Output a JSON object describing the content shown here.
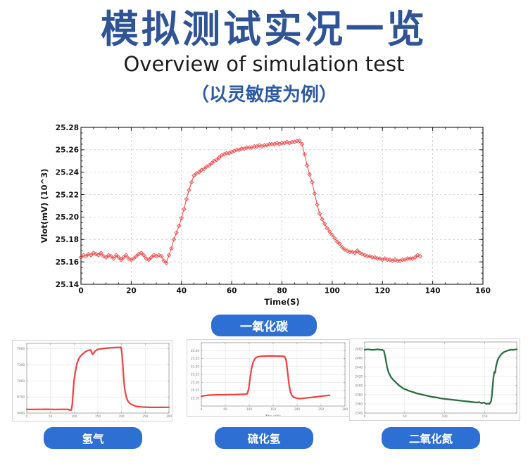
{
  "header": {
    "title": "模拟测试实况一览",
    "subtitle_en": "Overview of simulation test",
    "note": "（以灵敏度为例）"
  },
  "badges": {
    "main": "一氧化碳",
    "small": [
      "氢气",
      "硫化氢",
      "二氧化氮"
    ]
  },
  "colors": {
    "title_blue": "#2f5496",
    "note_blue": "#2c5ba3",
    "badge_blue": "#2e6fd4",
    "line_red": "#ee4747",
    "line_green": "#2c6e41"
  },
  "chart_data": [
    {
      "type": "scatter",
      "name": "carbon-monoxide sensitivity curve",
      "xlabel": "Time(S)",
      "ylabel": "Vlot(mV) (10^3)",
      "xlim": [
        0,
        160
      ],
      "ylim": [
        25.14,
        25.28
      ],
      "xticks": [
        0,
        20,
        40,
        60,
        80,
        100,
        120,
        140,
        160
      ],
      "yticks": [
        25.14,
        25.16,
        25.18,
        25.2,
        25.22,
        25.24,
        25.26,
        25.28
      ],
      "x_minor": 5,
      "y_minor": 0.005,
      "x_dec": 0,
      "y_dec": 2,
      "grid": "dashed",
      "color": "#ee4747",
      "points": [
        [
          0,
          25.164
        ],
        [
          1,
          25.166
        ],
        [
          2,
          25.165
        ],
        [
          3,
          25.167
        ],
        [
          4,
          25.166
        ],
        [
          5,
          25.168
        ],
        [
          6,
          25.167
        ],
        [
          7,
          25.166
        ],
        [
          8,
          25.168
        ],
        [
          9,
          25.165
        ],
        [
          10,
          25.164
        ],
        [
          11,
          25.166
        ],
        [
          12,
          25.165
        ],
        [
          13,
          25.163
        ],
        [
          14,
          25.166
        ],
        [
          15,
          25.164
        ],
        [
          16,
          25.162
        ],
        [
          17,
          25.164
        ],
        [
          18,
          25.166
        ],
        [
          19,
          25.163
        ],
        [
          20,
          25.162
        ],
        [
          21,
          25.163
        ],
        [
          22,
          25.165
        ],
        [
          23,
          25.167
        ],
        [
          24,
          25.168
        ],
        [
          25,
          25.166
        ],
        [
          26,
          25.163
        ],
        [
          27,
          25.162
        ],
        [
          28,
          25.164
        ],
        [
          29,
          25.166
        ],
        [
          30,
          25.165
        ],
        [
          31,
          25.166
        ],
        [
          32,
          25.165
        ],
        [
          33,
          25.161
        ],
        [
          34,
          25.159
        ],
        [
          35,
          25.166
        ],
        [
          36,
          25.172
        ],
        [
          37,
          25.18
        ],
        [
          38,
          25.186
        ],
        [
          39,
          25.192
        ],
        [
          40,
          25.199
        ],
        [
          41,
          25.207
        ],
        [
          42,
          25.216
        ],
        [
          43,
          25.224
        ],
        [
          44,
          25.231
        ],
        [
          45,
          25.237
        ],
        [
          46,
          25.239
        ],
        [
          47,
          25.24
        ],
        [
          48,
          25.242
        ],
        [
          49,
          25.243
        ],
        [
          50,
          25.245
        ],
        [
          51,
          25.246
        ],
        [
          52,
          25.248
        ],
        [
          53,
          25.25
        ],
        [
          54,
          25.251
        ],
        [
          55,
          25.253
        ],
        [
          56,
          25.255
        ],
        [
          57,
          25.256
        ],
        [
          58,
          25.257
        ],
        [
          59,
          25.257
        ],
        [
          60,
          25.258
        ],
        [
          61,
          25.259
        ],
        [
          62,
          25.26
        ],
        [
          63,
          25.26
        ],
        [
          64,
          25.261
        ],
        [
          65,
          25.261
        ],
        [
          66,
          25.262
        ],
        [
          67,
          25.262
        ],
        [
          68,
          25.262
        ],
        [
          69,
          25.263
        ],
        [
          70,
          25.263
        ],
        [
          71,
          25.264
        ],
        [
          72,
          25.263
        ],
        [
          73,
          25.264
        ],
        [
          74,
          25.264
        ],
        [
          75,
          25.265
        ],
        [
          76,
          25.265
        ],
        [
          77,
          25.265
        ],
        [
          78,
          25.266
        ],
        [
          79,
          25.265
        ],
        [
          80,
          25.266
        ],
        [
          81,
          25.266
        ],
        [
          82,
          25.267
        ],
        [
          83,
          25.266
        ],
        [
          84,
          25.267
        ],
        [
          85,
          25.267
        ],
        [
          86,
          25.268
        ],
        [
          87,
          25.268
        ],
        [
          88,
          25.265
        ],
        [
          89,
          25.256
        ],
        [
          90,
          25.246
        ],
        [
          91,
          25.238
        ],
        [
          92,
          25.231
        ],
        [
          93,
          25.221
        ],
        [
          94,
          25.211
        ],
        [
          95,
          25.203
        ],
        [
          96,
          25.198
        ],
        [
          97,
          25.194
        ],
        [
          98,
          25.19
        ],
        [
          99,
          25.187
        ],
        [
          100,
          25.184
        ],
        [
          101,
          25.181
        ],
        [
          102,
          25.178
        ],
        [
          103,
          25.176
        ],
        [
          104,
          25.173
        ],
        [
          105,
          25.171
        ],
        [
          106,
          25.17
        ],
        [
          107,
          25.169
        ],
        [
          108,
          25.169
        ],
        [
          109,
          25.168
        ],
        [
          110,
          25.17
        ],
        [
          111,
          25.168
        ],
        [
          112,
          25.167
        ],
        [
          113,
          25.166
        ],
        [
          114,
          25.165
        ],
        [
          115,
          25.165
        ],
        [
          116,
          25.164
        ],
        [
          117,
          25.164
        ],
        [
          118,
          25.163
        ],
        [
          119,
          25.163
        ],
        [
          120,
          25.162
        ],
        [
          121,
          25.163
        ],
        [
          122,
          25.162
        ],
        [
          123,
          25.162
        ],
        [
          124,
          25.161
        ],
        [
          125,
          25.162
        ],
        [
          126,
          25.161
        ],
        [
          127,
          25.161
        ],
        [
          128,
          25.162
        ],
        [
          129,
          25.162
        ],
        [
          130,
          25.163
        ],
        [
          131,
          25.163
        ],
        [
          132,
          25.163
        ],
        [
          133,
          25.164
        ],
        [
          134,
          25.166
        ],
        [
          135,
          25.165
        ]
      ]
    },
    {
      "type": "line",
      "name": "hydrogen response curve",
      "xlabel": "",
      "ylabel": "",
      "xlim": [
        0,
        300
      ],
      "ylim": [
        6400,
        7700
      ],
      "xticks": [
        0,
        50,
        100,
        150,
        200,
        250,
        300
      ],
      "yticks": [
        6400,
        6700,
        7000,
        7300,
        7600
      ],
      "x_dec": 0,
      "y_dec": 0,
      "grid": "solid",
      "color": "#ee4040",
      "points": [
        [
          0,
          6470
        ],
        [
          10,
          6468
        ],
        [
          20,
          6470
        ],
        [
          30,
          6469
        ],
        [
          40,
          6471
        ],
        [
          50,
          6470
        ],
        [
          60,
          6468
        ],
        [
          70,
          6470
        ],
        [
          80,
          6469
        ],
        [
          88,
          6468
        ],
        [
          91,
          6452
        ],
        [
          94,
          6458
        ],
        [
          96,
          6560
        ],
        [
          98,
          6820
        ],
        [
          100,
          7020
        ],
        [
          103,
          7200
        ],
        [
          106,
          7330
        ],
        [
          110,
          7420
        ],
        [
          114,
          7470
        ],
        [
          118,
          7505
        ],
        [
          123,
          7540
        ],
        [
          128,
          7565
        ],
        [
          132,
          7575
        ],
        [
          135,
          7578
        ],
        [
          137,
          7535
        ],
        [
          139,
          7495
        ],
        [
          141,
          7515
        ],
        [
          144,
          7555
        ],
        [
          148,
          7580
        ],
        [
          152,
          7592
        ],
        [
          157,
          7600
        ],
        [
          163,
          7607
        ],
        [
          170,
          7613
        ],
        [
          178,
          7618
        ],
        [
          186,
          7622
        ],
        [
          194,
          7625
        ],
        [
          199,
          7626
        ],
        [
          201,
          7500
        ],
        [
          203,
          7250
        ],
        [
          205,
          7000
        ],
        [
          207,
          6820
        ],
        [
          210,
          6700
        ],
        [
          213,
          6630
        ],
        [
          217,
          6585
        ],
        [
          221,
          6560
        ],
        [
          226,
          6540
        ],
        [
          232,
          6525
        ],
        [
          240,
          6515
        ],
        [
          250,
          6510
        ],
        [
          260,
          6507
        ],
        [
          272,
          6506
        ],
        [
          285,
          6507
        ],
        [
          300,
          6508
        ]
      ]
    },
    {
      "type": "line",
      "name": "hydrogen-sulfide response curve",
      "xlabel": "Time(S)",
      "ylabel": "",
      "xlim": [
        0,
        300
      ],
      "ylim": [
        25.05,
        25.45
      ],
      "xticks": [
        0,
        50,
        100,
        150,
        200,
        250,
        300
      ],
      "yticks": [
        25.1,
        25.15,
        25.2,
        25.25,
        25.3,
        25.35,
        25.4
      ],
      "x_dec": 0,
      "y_dec": 2,
      "grid": "solid",
      "color": "#ee4040",
      "points": [
        [
          0,
          25.112
        ],
        [
          8,
          25.116
        ],
        [
          16,
          25.119
        ],
        [
          25,
          25.12
        ],
        [
          35,
          25.121
        ],
        [
          45,
          25.121
        ],
        [
          55,
          25.122
        ],
        [
          65,
          25.122
        ],
        [
          75,
          25.123
        ],
        [
          85,
          25.124
        ],
        [
          92,
          25.125
        ],
        [
          96,
          25.128
        ],
        [
          99,
          25.16
        ],
        [
          102,
          25.23
        ],
        [
          105,
          25.29
        ],
        [
          108,
          25.325
        ],
        [
          111,
          25.345
        ],
        [
          114,
          25.355
        ],
        [
          118,
          25.361
        ],
        [
          123,
          25.364
        ],
        [
          130,
          25.365
        ],
        [
          140,
          25.366
        ],
        [
          150,
          25.366
        ],
        [
          160,
          25.365
        ],
        [
          168,
          25.365
        ],
        [
          174,
          25.363
        ],
        [
          177,
          25.34
        ],
        [
          180,
          25.27
        ],
        [
          183,
          25.19
        ],
        [
          186,
          25.14
        ],
        [
          189,
          25.118
        ],
        [
          193,
          25.106
        ],
        [
          198,
          25.1
        ],
        [
          205,
          25.097
        ],
        [
          213,
          25.099
        ],
        [
          222,
          25.102
        ],
        [
          232,
          25.105
        ],
        [
          242,
          25.109
        ],
        [
          252,
          25.113
        ],
        [
          262,
          25.116
        ],
        [
          268,
          25.118
        ]
      ]
    },
    {
      "type": "line",
      "name": "nitrogen-dioxide response curve",
      "xlabel": "",
      "ylabel": "",
      "xlim": [
        0,
        190
      ],
      "ylim": [
        2340,
        2495
      ],
      "xticks": [
        0,
        50,
        100,
        150
      ],
      "yticks": [
        2340,
        2360,
        2380,
        2400,
        2420,
        2440,
        2460,
        2480
      ],
      "x_dec": 0,
      "y_dec": 0,
      "grid": "solid",
      "color": "#2c6e41",
      "points": [
        [
          0,
          2478
        ],
        [
          4,
          2479
        ],
        [
          8,
          2478
        ],
        [
          12,
          2478
        ],
        [
          16,
          2479
        ],
        [
          20,
          2478
        ],
        [
          22,
          2478
        ],
        [
          24,
          2476
        ],
        [
          26,
          2460
        ],
        [
          28,
          2440
        ],
        [
          30,
          2428
        ],
        [
          33,
          2418
        ],
        [
          36,
          2412
        ],
        [
          40,
          2405
        ],
        [
          44,
          2399
        ],
        [
          48,
          2394
        ],
        [
          52,
          2391
        ],
        [
          56,
          2388
        ],
        [
          60,
          2386
        ],
        [
          65,
          2383
        ],
        [
          70,
          2381
        ],
        [
          75,
          2379
        ],
        [
          80,
          2377
        ],
        [
          85,
          2375
        ],
        [
          90,
          2374
        ],
        [
          95,
          2372
        ],
        [
          100,
          2371
        ],
        [
          105,
          2370
        ],
        [
          110,
          2369
        ],
        [
          115,
          2368
        ],
        [
          120,
          2367
        ],
        [
          125,
          2366
        ],
        [
          130,
          2365
        ],
        [
          135,
          2364
        ],
        [
          140,
          2363
        ],
        [
          143,
          2364
        ],
        [
          146,
          2362
        ],
        [
          149,
          2363
        ],
        [
          152,
          2360
        ],
        [
          154,
          2361
        ],
        [
          156,
          2360
        ],
        [
          158,
          2366
        ],
        [
          159,
          2380
        ],
        [
          160,
          2400
        ],
        [
          161,
          2418
        ],
        [
          162,
          2430
        ],
        [
          163,
          2428
        ],
        [
          164,
          2440
        ],
        [
          166,
          2455
        ],
        [
          168,
          2462
        ],
        [
          171,
          2469
        ],
        [
          174,
          2473
        ],
        [
          178,
          2476
        ],
        [
          182,
          2478
        ],
        [
          186,
          2478
        ],
        [
          190,
          2479
        ]
      ]
    }
  ]
}
